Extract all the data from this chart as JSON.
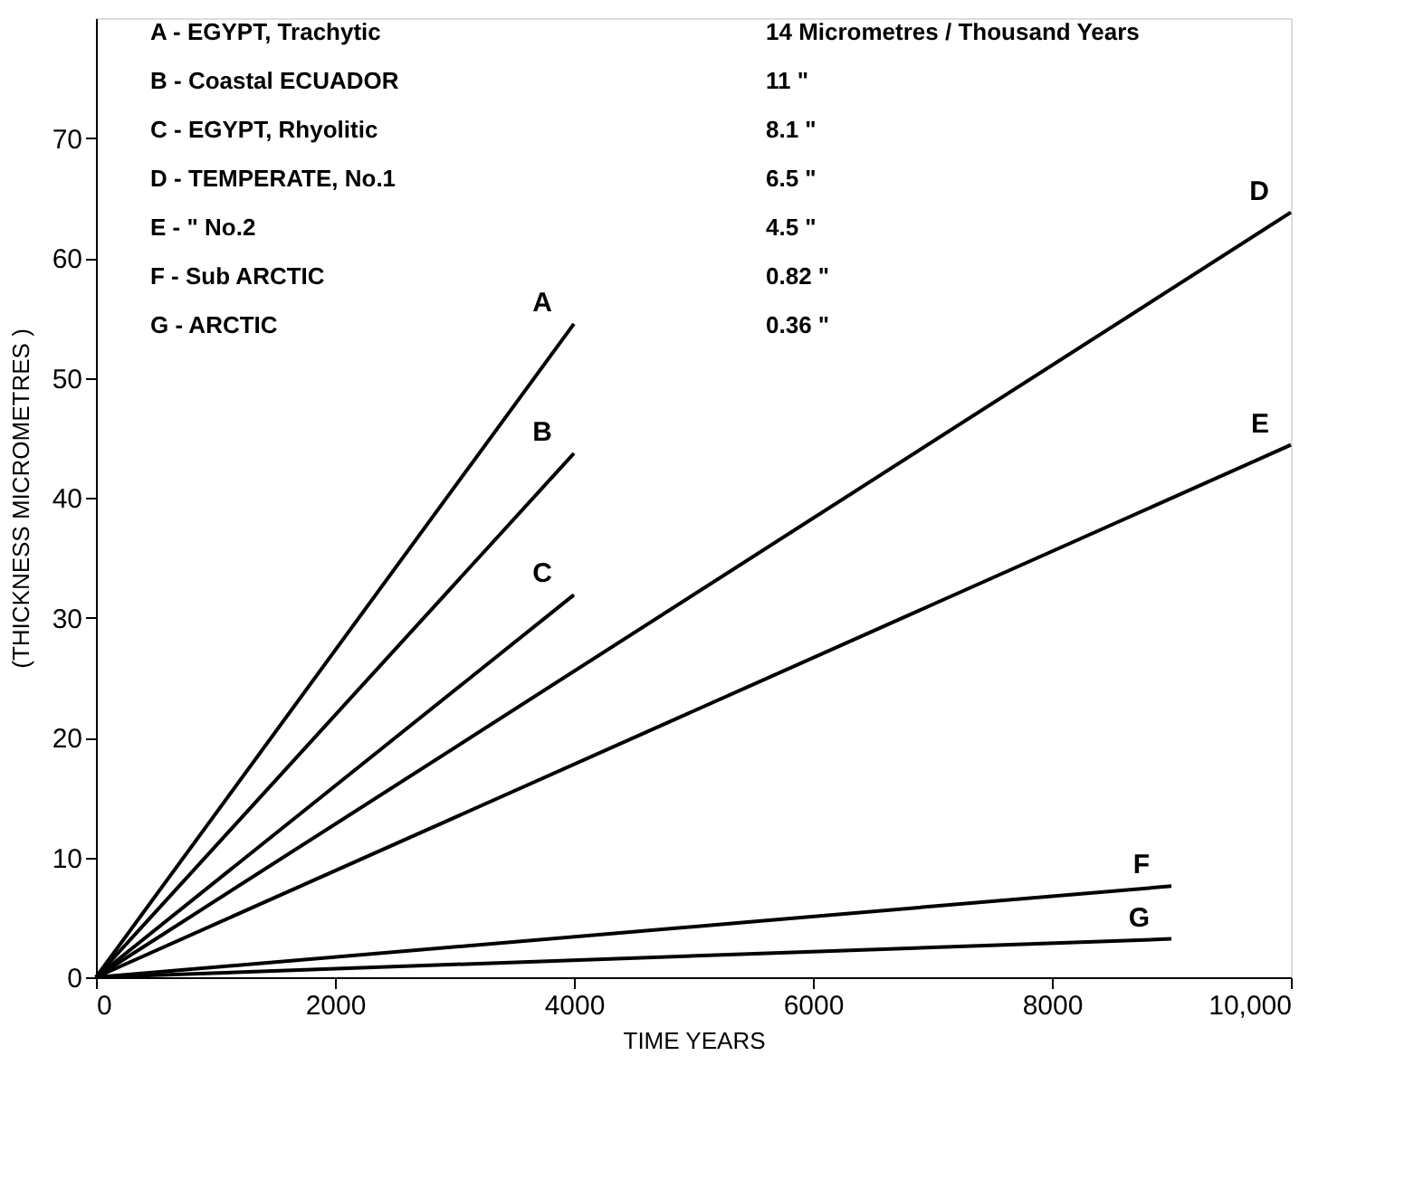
{
  "chart_data": {
    "type": "line",
    "xlabel": "TIME YEARS",
    "ylabel": "(THICKNESS MICROMETRES )",
    "xlim": [
      0,
      10000
    ],
    "xticks": [
      0,
      2000,
      4000,
      6000,
      8000,
      {
        "value": 10000,
        "label": "10,000"
      }
    ],
    "ylim": [
      0,
      80
    ],
    "yticks": [
      0,
      10,
      20,
      30,
      40,
      50,
      60,
      70
    ],
    "grid": false,
    "marker": "none",
    "line_style": "solid",
    "series": [
      {
        "name": "A",
        "color": "#000000",
        "x": [
          0,
          4000
        ],
        "values": [
          0,
          54.5
        ]
      },
      {
        "name": "B",
        "color": "#000000",
        "x": [
          0,
          4000
        ],
        "values": [
          0,
          43.7
        ]
      },
      {
        "name": "C",
        "color": "#000000",
        "x": [
          0,
          4000
        ],
        "values": [
          0,
          31.9
        ]
      },
      {
        "name": "D",
        "color": "#000000",
        "x": [
          0,
          10000
        ],
        "values": [
          0,
          63.8
        ]
      },
      {
        "name": "E",
        "color": "#000000",
        "x": [
          0,
          10000
        ],
        "values": [
          0,
          44.4
        ]
      },
      {
        "name": "F",
        "color": "#000000",
        "x": [
          0,
          9000
        ],
        "values": [
          0,
          7.6
        ]
      },
      {
        "name": "G",
        "color": "#000000",
        "x": [
          0,
          9000
        ],
        "values": [
          0,
          3.2
        ]
      }
    ],
    "annotations": [
      "A - EGYPT, Trachytic",
      "B - Coastal ECUADOR",
      "C - EGYPT, Rhyolitic",
      "D - TEMPERATE, No.1",
      "E -     \"          No.2",
      "F - Sub ARCTIC",
      "G - ARCTIC",
      "14 Micrometres / Thousand Years",
      "11           \"",
      "8.1          \"",
      "6.5          \"",
      "4.5          \"",
      "0.82        \"",
      "0.36        \""
    ]
  }
}
